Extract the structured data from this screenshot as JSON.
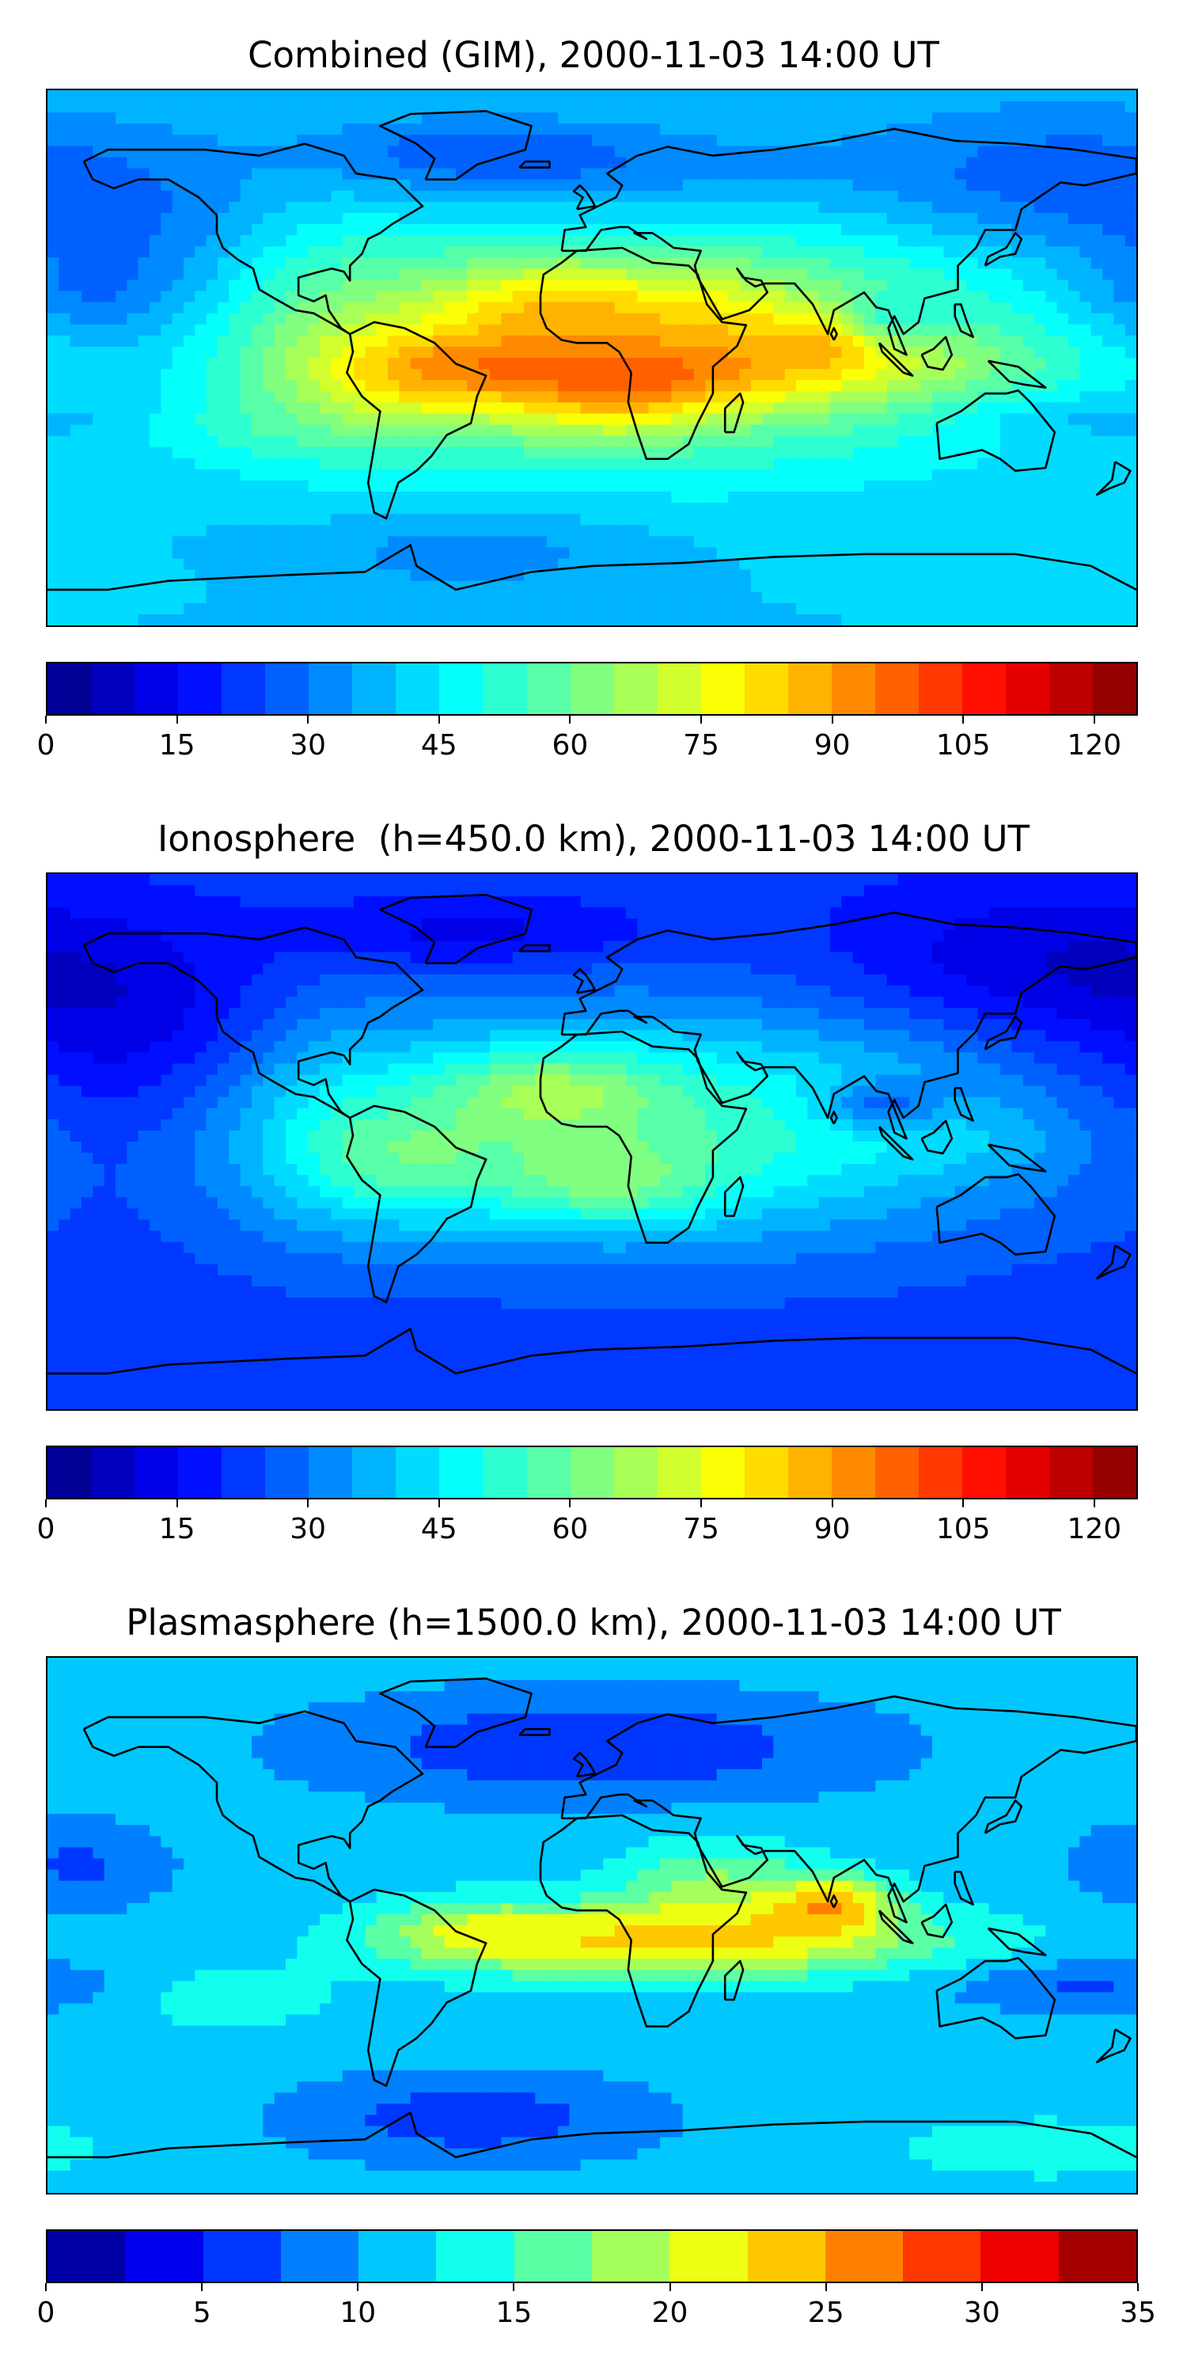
{
  "panels": [
    {
      "title": "Combined (GIM), 2000-11-03 14:00 UT",
      "field": "combined",
      "colorbar": {
        "min": 0,
        "max": 125,
        "levels": 25,
        "tick_values": [
          0,
          15,
          30,
          45,
          60,
          75,
          90,
          105,
          120
        ],
        "tick_labels": [
          "0",
          "15",
          "30",
          "45",
          "60",
          "75",
          "90",
          "105",
          "120"
        ]
      }
    },
    {
      "title": "Ionosphere  (h=450.0 km), 2000-11-03 14:00 UT",
      "field": "ionosphere",
      "colorbar": {
        "min": 0,
        "max": 125,
        "levels": 25,
        "tick_values": [
          0,
          15,
          30,
          45,
          60,
          75,
          90,
          105,
          120
        ],
        "tick_labels": [
          "0",
          "15",
          "30",
          "45",
          "60",
          "75",
          "90",
          "105",
          "120"
        ]
      }
    },
    {
      "title": "Plasmasphere (h=1500.0 km), 2000-11-03 14:00 UT",
      "field": "plasmasphere",
      "colorbar": {
        "min": 0,
        "max": 35,
        "levels": 14,
        "tick_values": [
          0,
          5,
          10,
          15,
          20,
          25,
          30,
          35
        ],
        "tick_labels": [
          "0",
          "5",
          "10",
          "15",
          "20",
          "25",
          "30",
          "35"
        ]
      }
    }
  ],
  "colormap": "jet",
  "colors": {
    "background": "#ffffff",
    "coastline": "#000000"
  }
}
